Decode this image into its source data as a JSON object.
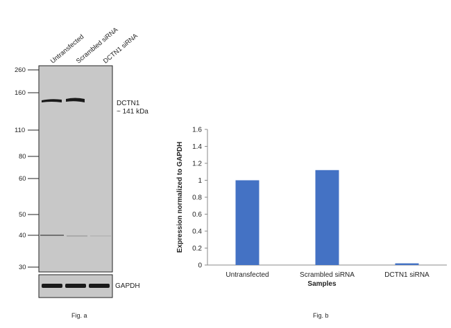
{
  "western_blot": {
    "lane_labels": [
      "Untransfected",
      "Scrambled siRNA",
      "DCTN1 siRNA"
    ],
    "mw_markers": [
      "260",
      "160",
      "110",
      "80",
      "60",
      "50",
      "40",
      "30"
    ],
    "target_label_line1": "DCTN1",
    "target_label_line2": "~ 141 kDa",
    "loading_control_label": "GAPDH",
    "caption": "Fig. a",
    "colors": {
      "membrane": "#c8c8c8",
      "band": "#1a1a1a"
    },
    "target_band_present": [
      true,
      true,
      false
    ],
    "gapdh_band_present": [
      true,
      true,
      true
    ]
  },
  "chart_data": {
    "type": "bar",
    "categories": [
      "Untransfected",
      "Scrambled siRNA",
      "DCTN1 siRNA"
    ],
    "series": [
      {
        "values": [
          1.0,
          1.12,
          0.02
        ]
      }
    ],
    "title": "",
    "xlabel": "Samples",
    "ylabel": "Expression normalized to GAPDH",
    "ylim": [
      0,
      1.6
    ],
    "yticks": [
      "0",
      "0.2",
      "0.4",
      "0.6",
      "0.8",
      "1",
      "1.2",
      "1.4",
      "1.6"
    ],
    "grid": false,
    "legend": "none",
    "bar_color": "#4472c4",
    "caption": "Fig. b"
  }
}
